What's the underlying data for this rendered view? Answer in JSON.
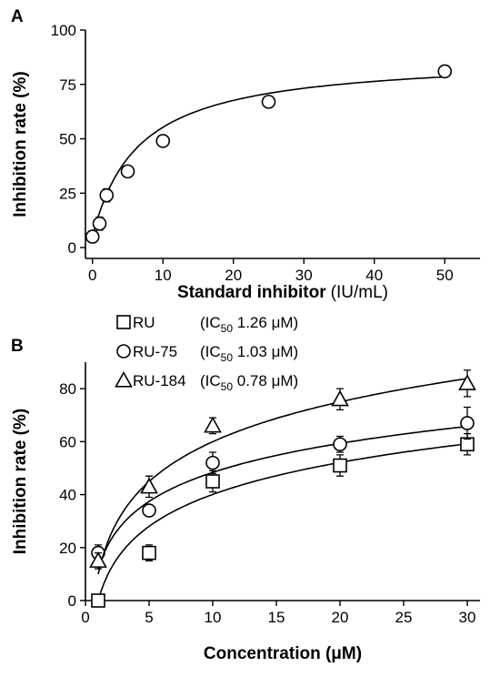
{
  "chart_data": [
    {
      "panel": "A",
      "type": "scatter",
      "xlabel": "Standard inhibitor",
      "xunit": "(IU/mL)",
      "ylabel": "Inhibition rate (%)",
      "xlim": [
        -1,
        55
      ],
      "ylim": [
        -5,
        100
      ],
      "xticks": [
        0,
        10,
        20,
        30,
        40,
        50
      ],
      "yticks": [
        0,
        25,
        50,
        75,
        100
      ],
      "grid": false,
      "series": [
        {
          "marker": "circle",
          "x": [
            0,
            1,
            2,
            5,
            10,
            25,
            50
          ],
          "y": [
            5,
            11,
            24,
            35,
            49,
            67,
            81
          ],
          "err": [
            2,
            3,
            3,
            2,
            2,
            2,
            1
          ],
          "fit": {
            "model": "hyperbolic",
            "vmax": 88,
            "k": 6.5
          }
        }
      ]
    },
    {
      "panel": "B",
      "type": "scatter",
      "xlabel": "Concentration (μM)",
      "ylabel": "Inhibition rate (%)",
      "xlim": [
        0,
        31
      ],
      "ylim": [
        0,
        90
      ],
      "xticks": [
        0,
        5,
        10,
        15,
        20,
        25,
        30
      ],
      "yticks": [
        0,
        20,
        40,
        60,
        80
      ],
      "grid": false,
      "legend": "top-left",
      "series": [
        {
          "name": "RU",
          "ic50": "(IC50 1.26 μM)",
          "ic50_parts": [
            "(IC",
            "50",
            " 1.26 μM)"
          ],
          "marker": "square",
          "x": [
            1,
            5,
            10,
            20,
            30
          ],
          "y": [
            0,
            18,
            45,
            51,
            59
          ],
          "err": [
            0,
            3,
            4,
            4,
            4
          ],
          "fit": {
            "model": "log",
            "a": 0,
            "b": 17.4
          }
        },
        {
          "name": "RU-75",
          "ic50": "(IC50 1.03 μM)",
          "ic50_parts": [
            "(IC",
            "50",
            " 1.03 μM)"
          ],
          "marker": "circle",
          "x": [
            1,
            5,
            10,
            20,
            30
          ],
          "y": [
            18,
            34,
            52,
            59,
            67
          ],
          "err": [
            3,
            2,
            4,
            3,
            6
          ],
          "fit": {
            "model": "log",
            "a": 12,
            "b": 15.8
          }
        },
        {
          "name": "RU-184",
          "ic50": "(IC50 0.78 μM)",
          "ic50_parts": [
            "(IC",
            "50",
            " 0.78 μM)"
          ],
          "marker": "triangle",
          "x": [
            1,
            5,
            10,
            20,
            30
          ],
          "y": [
            15,
            43,
            66,
            76,
            82
          ],
          "err": [
            3,
            4,
            3,
            4,
            5
          ],
          "fit": {
            "model": "log",
            "a": 10,
            "b": 21.7
          }
        }
      ]
    }
  ]
}
